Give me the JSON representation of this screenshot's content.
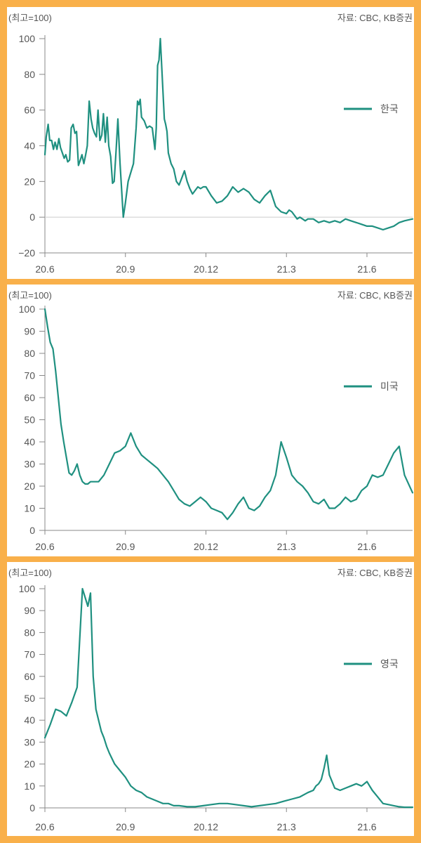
{
  "style": {
    "background": "#f9b04a",
    "panel_background": "#ffffff",
    "line_color": "#1f9080",
    "axis_color": "#888888",
    "text_color": "#555555"
  },
  "chart_data": [
    {
      "type": "line",
      "unit_label": "(최고=100)",
      "source": "자료: CBC, KB증권",
      "legend": "한국",
      "legend_position": "right",
      "xlabel": "",
      "ylabel": "",
      "x_ticks": [
        "20.6",
        "20.9",
        "20.12",
        "21.3",
        "21.6"
      ],
      "y_ticks": [
        100,
        80,
        60,
        40,
        20,
        0,
        -20
      ],
      "y_tick_labels": [
        "100",
        "80",
        "60",
        "40",
        "20",
        "0",
        "−20"
      ],
      "ylim": [
        -20,
        100
      ],
      "xlim": [
        0,
        13.7
      ],
      "series": [
        {
          "name": "한국",
          "x": [
            0,
            0.05,
            0.12,
            0.18,
            0.25,
            0.32,
            0.38,
            0.45,
            0.52,
            0.58,
            0.65,
            0.72,
            0.78,
            0.85,
            0.92,
            0.98,
            1.05,
            1.12,
            1.18,
            1.25,
            1.32,
            1.38,
            1.45,
            1.52,
            1.58,
            1.65,
            1.72,
            1.78,
            1.85,
            1.92,
            1.98,
            2.05,
            2.12,
            2.18,
            2.25,
            2.32,
            2.38,
            2.45,
            2.52,
            2.58,
            2.65,
            2.72,
            2.8,
            2.92,
            3.0,
            3.1,
            3.2,
            3.3,
            3.35,
            3.4,
            3.45,
            3.5,
            3.55,
            3.6,
            3.65,
            3.7,
            3.8,
            3.9,
            4.0,
            4.1,
            4.15,
            4.2,
            4.25,
            4.3,
            4.35,
            4.4,
            4.45,
            4.5,
            4.55,
            4.6,
            4.7,
            4.8,
            4.9,
            5.0,
            5.1,
            5.2,
            5.3,
            5.4,
            5.5,
            5.6,
            5.7,
            5.8,
            5.9,
            6.0,
            6.2,
            6.4,
            6.6,
            6.8,
            7.0,
            7.2,
            7.4,
            7.6,
            7.8,
            8.0,
            8.2,
            8.4,
            8.6,
            8.8,
            9.0,
            9.1,
            9.2,
            9.3,
            9.4,
            9.5,
            9.6,
            9.7,
            9.8,
            9.9,
            10.0,
            10.2,
            10.4,
            10.6,
            10.8,
            11.0,
            11.2,
            11.4,
            11.6,
            11.8,
            12.0,
            12.2,
            12.4,
            12.6,
            12.8,
            13.0,
            13.2,
            13.4,
            13.7
          ],
          "values": [
            35,
            45,
            52,
            43,
            43,
            38,
            42,
            38,
            44,
            39,
            36,
            33,
            35,
            31,
            32,
            50,
            52,
            47,
            48,
            29,
            32,
            35,
            30,
            35,
            40,
            65,
            55,
            50,
            47,
            45,
            60,
            43,
            46,
            58,
            42,
            56,
            40,
            34,
            19,
            20,
            37,
            55,
            30,
            0,
            8,
            20,
            25,
            30,
            40,
            50,
            65,
            63,
            66,
            56,
            55,
            54,
            50,
            51,
            50,
            38,
            50,
            85,
            88,
            100,
            85,
            70,
            55,
            52,
            48,
            36,
            30,
            27,
            20,
            18,
            22,
            26,
            20,
            16,
            13,
            15,
            17,
            16,
            17,
            17,
            12,
            8,
            9,
            12,
            17,
            14,
            16,
            14,
            10,
            8,
            12,
            15,
            6,
            3,
            2,
            4,
            3,
            1,
            -1,
            0,
            -1,
            -2,
            -1,
            -1,
            -1,
            -3,
            -2,
            -3,
            -2,
            -3,
            -1,
            -2,
            -3,
            -4,
            -5,
            -5,
            -6,
            -7,
            -6,
            -5,
            -3,
            -2,
            -1
          ]
        }
      ]
    },
    {
      "type": "line",
      "unit_label": "(최고=100)",
      "source": "자료: CBC, KB증권",
      "legend": "미국",
      "legend_position": "right",
      "xlabel": "",
      "ylabel": "",
      "x_ticks": [
        "20.6",
        "20.9",
        "20.12",
        "21.3",
        "21.6"
      ],
      "y_ticks": [
        100,
        90,
        80,
        70,
        60,
        50,
        40,
        30,
        20,
        10,
        0
      ],
      "y_tick_labels": [
        "100",
        "90",
        "80",
        "70",
        "60",
        "50",
        "40",
        "30",
        "20",
        "10",
        "0"
      ],
      "ylim": [
        0,
        100
      ],
      "xlim": [
        0,
        13.7
      ],
      "series": [
        {
          "name": "미국",
          "x": [
            0,
            0.1,
            0.2,
            0.3,
            0.4,
            0.5,
            0.6,
            0.7,
            0.8,
            0.9,
            1.0,
            1.1,
            1.2,
            1.3,
            1.4,
            1.5,
            1.6,
            1.7,
            1.8,
            1.9,
            2.0,
            2.2,
            2.4,
            2.6,
            2.8,
            3.0,
            3.2,
            3.4,
            3.6,
            3.8,
            4.0,
            4.2,
            4.4,
            4.6,
            4.8,
            5.0,
            5.2,
            5.4,
            5.6,
            5.8,
            6.0,
            6.2,
            6.4,
            6.6,
            6.8,
            7.0,
            7.2,
            7.4,
            7.6,
            7.8,
            8.0,
            8.2,
            8.4,
            8.6,
            8.8,
            9.0,
            9.2,
            9.4,
            9.6,
            9.8,
            10.0,
            10.2,
            10.4,
            10.6,
            10.8,
            11.0,
            11.2,
            11.4,
            11.6,
            11.8,
            12.0,
            12.2,
            12.4,
            12.6,
            12.8,
            13.0,
            13.2,
            13.4,
            13.7
          ],
          "values": [
            100,
            92,
            85,
            82,
            72,
            60,
            48,
            40,
            33,
            26,
            25,
            27,
            30,
            25,
            22,
            21,
            21,
            22,
            22,
            22,
            22,
            25,
            30,
            35,
            36,
            38,
            44,
            38,
            34,
            32,
            30,
            28,
            25,
            22,
            18,
            14,
            12,
            11,
            13,
            15,
            13,
            10,
            9,
            8,
            5,
            8,
            12,
            15,
            10,
            9,
            11,
            15,
            18,
            25,
            40,
            33,
            25,
            22,
            20,
            17,
            13,
            12,
            14,
            10,
            10,
            12,
            15,
            13,
            14,
            18,
            20,
            25,
            24,
            25,
            30,
            35,
            38,
            25,
            17
          ]
        }
      ]
    },
    {
      "type": "line",
      "unit_label": "(최고=100)",
      "source": "자료: CBC, KB증권",
      "legend": "영국",
      "legend_position": "right",
      "xlabel": "",
      "ylabel": "",
      "x_ticks": [
        "20.6",
        "20.9",
        "20.12",
        "21.3",
        "21.6"
      ],
      "y_ticks": [
        100,
        90,
        80,
        70,
        60,
        50,
        40,
        30,
        20,
        10,
        0
      ],
      "y_tick_labels": [
        "100",
        "90",
        "80",
        "70",
        "60",
        "50",
        "40",
        "30",
        "20",
        "10",
        "0"
      ],
      "ylim": [
        0,
        100
      ],
      "xlim": [
        0,
        13.7
      ],
      "series": [
        {
          "name": "영국",
          "x": [
            0,
            0.2,
            0.4,
            0.6,
            0.8,
            1.0,
            1.2,
            1.4,
            1.6,
            1.7,
            1.8,
            1.9,
            2.0,
            2.1,
            2.2,
            2.3,
            2.4,
            2.6,
            2.8,
            3.0,
            3.2,
            3.4,
            3.6,
            3.8,
            4.0,
            4.2,
            4.4,
            4.6,
            4.8,
            5.0,
            5.3,
            5.6,
            5.9,
            6.2,
            6.5,
            6.8,
            7.1,
            7.4,
            7.7,
            8.0,
            8.3,
            8.6,
            8.9,
            9.2,
            9.5,
            9.8,
            10.0,
            10.1,
            10.2,
            10.3,
            10.4,
            10.5,
            10.6,
            10.8,
            11.0,
            11.2,
            11.4,
            11.6,
            11.8,
            12.0,
            12.1,
            12.2,
            12.4,
            12.6,
            12.8,
            13.0,
            13.2,
            13.4,
            13.7
          ],
          "values": [
            32,
            38,
            45,
            44,
            42,
            48,
            55,
            100,
            92,
            98,
            60,
            45,
            40,
            35,
            32,
            28,
            25,
            20,
            17,
            14,
            10,
            8,
            7,
            5,
            4,
            3,
            2,
            2,
            1,
            1,
            0.5,
            0.5,
            1,
            1.5,
            2,
            2,
            1.5,
            1,
            0.5,
            1,
            1.5,
            2,
            3,
            4,
            5,
            7,
            8,
            10,
            11,
            13,
            18,
            24,
            15,
            9,
            8,
            9,
            10,
            11,
            10,
            12,
            10,
            8,
            5,
            2,
            1.5,
            1,
            0.5,
            0.3,
            0.3
          ]
        }
      ]
    }
  ]
}
